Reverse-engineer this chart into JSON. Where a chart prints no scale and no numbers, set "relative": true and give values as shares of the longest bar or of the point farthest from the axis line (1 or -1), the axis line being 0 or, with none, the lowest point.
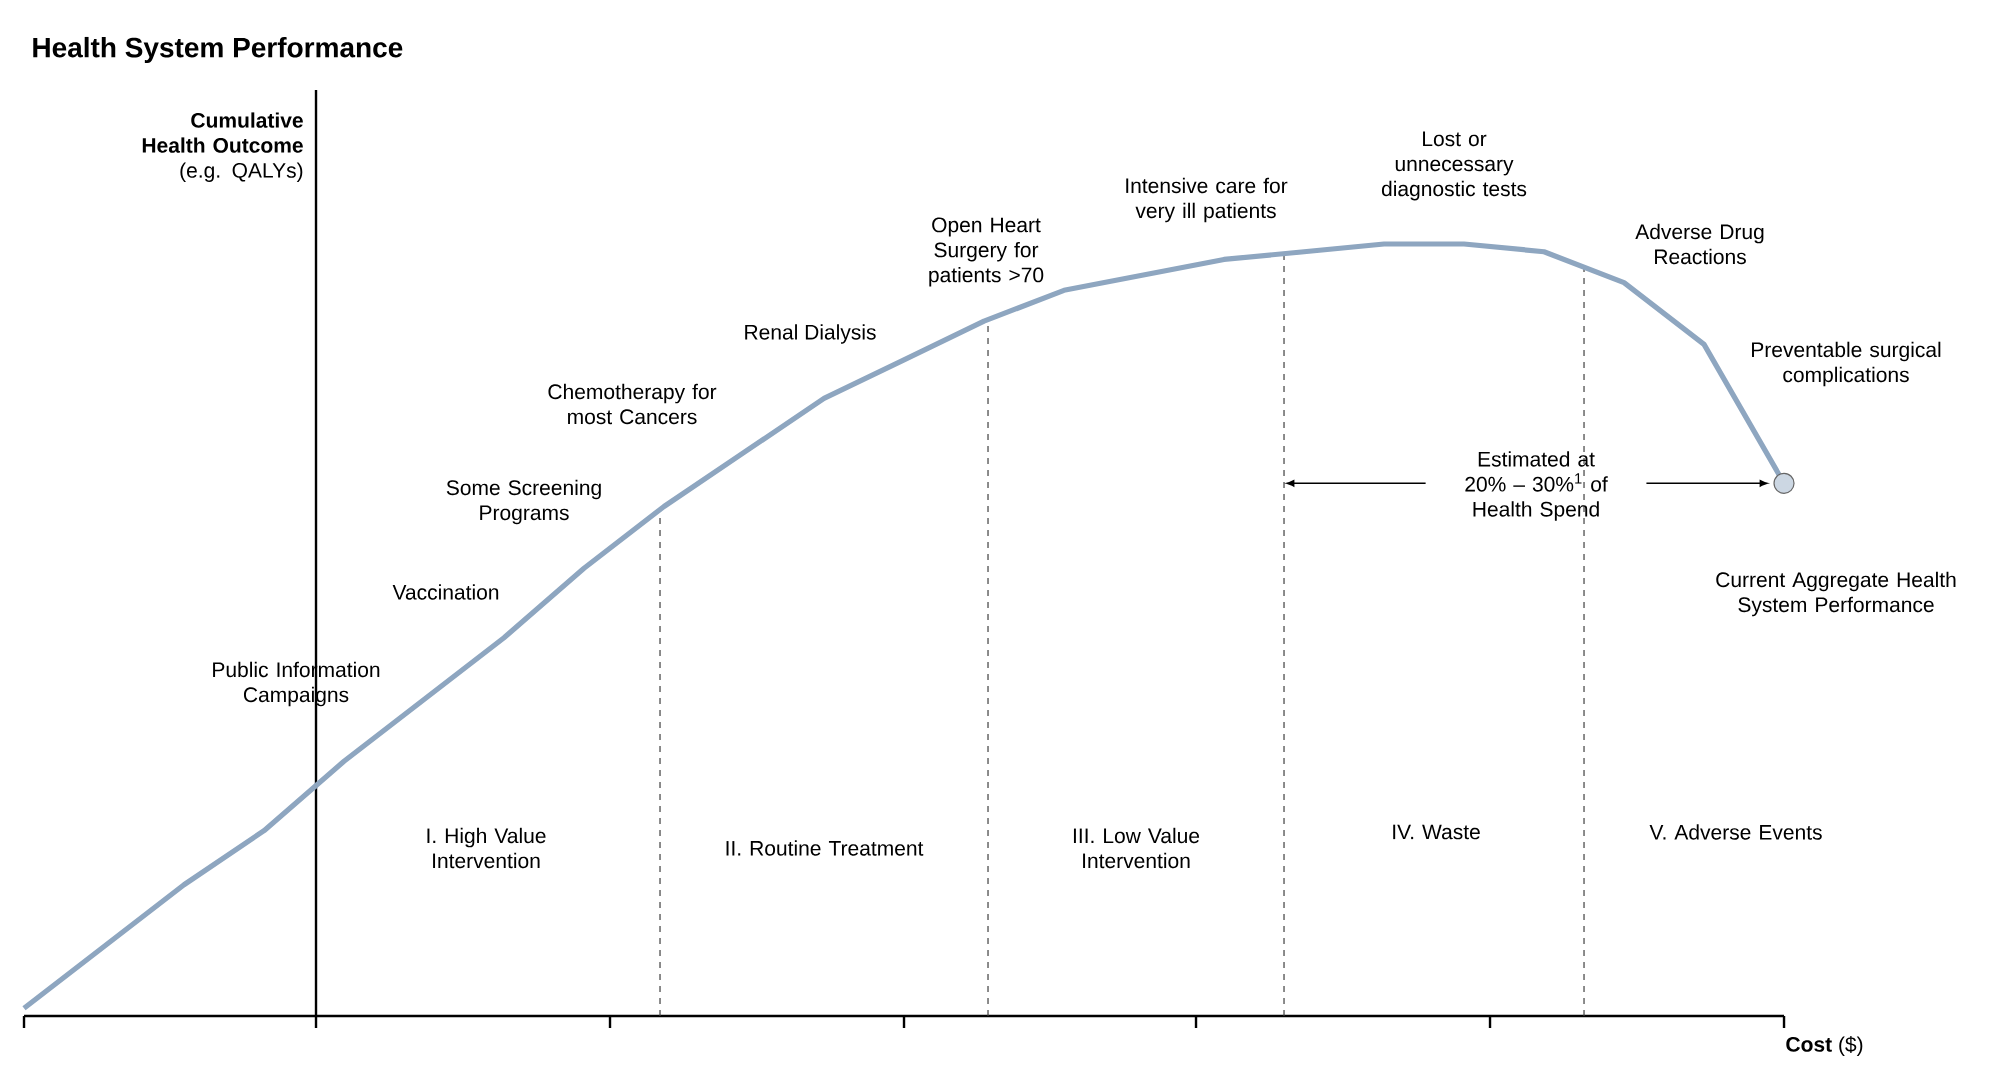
{
  "chart_data": {
    "type": "line",
    "relative": true,
    "title": "Health System Performance",
    "xlabel": "**Cost** ($)",
    "ylabel": "**Cumulative Health Outcome** (e.g. QALYs)",
    "categories": [
      null,
      null,
      null,
      null,
      null,
      null,
      null,
      null,
      null,
      null,
      null,
      null,
      null,
      null,
      null,
      null,
      null,
      null,
      null,
      null,
      null,
      null,
      null
    ],
    "series": [
      {
        "values": [
          0.01,
          0.09,
          0.17,
          0.24,
          0.33,
          0.41,
          0.49,
          0.58,
          0.66,
          0.73,
          0.8,
          0.85,
          0.9,
          0.94,
          0.96,
          0.98,
          0.99,
          1.0,
          1.0,
          0.99,
          0.95,
          0.87,
          0.69
        ],
        "color": "#8ea6c0",
        "line_style": "solid"
      }
    ],
    "annotations": [
      "Public Information Campaigns",
      "Vaccination",
      "Some Screening Programs",
      "Chemotherapy for most Cancers",
      "Renal Dialysis",
      "Open Heart Surgery for patients >70",
      "Intensive care for very ill patients",
      "Lost or unnecessary diagnostic tests",
      "Adverse Drug Reactions",
      "Preventable surgical complications",
      "Current Aggregate Health System Performance",
      "Estimated at 20% – 30%$^{1}$ of Health Spend",
      "I. High Value Intervention",
      "II. Routine Treatment",
      "III. Low Value Intervention",
      "IV. Waste",
      "V. Adverse Events"
    ]
  }
}
